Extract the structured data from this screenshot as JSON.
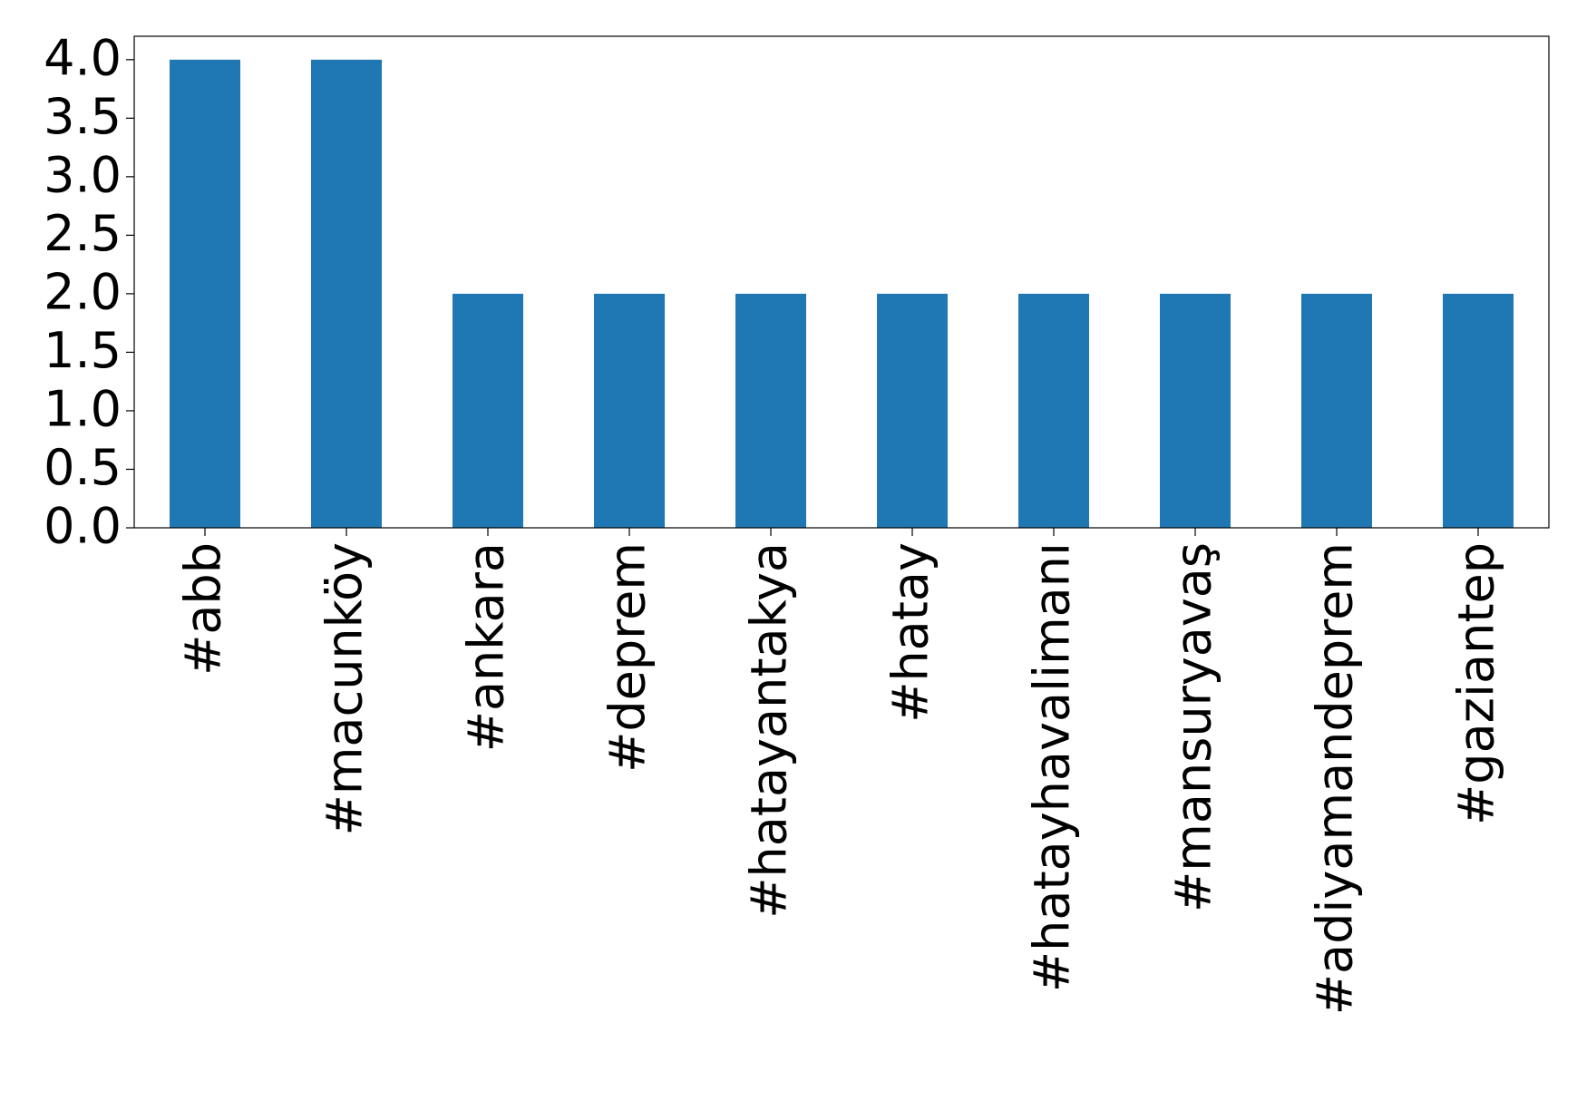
{
  "chart_data": {
    "type": "bar",
    "categories": [
      "#abb",
      "#macunköy",
      "#ankara",
      "#deprem",
      "#hatayantakya",
      "#hatay",
      "#hatayhavalimanı",
      "#mansuryavaş",
      "#adiyamandeprem",
      "#gaziantep"
    ],
    "values": [
      4,
      4,
      2,
      2,
      2,
      2,
      2,
      2,
      2,
      2
    ],
    "color": "#1f77b4",
    "ylim": [
      0,
      4.2
    ],
    "yticks": [
      {
        "value": 0,
        "label": "0.0"
      },
      0.5,
      {
        "value": 1,
        "label": "1.0"
      },
      1.5,
      {
        "value": 2,
        "label": "2.0"
      },
      2.5,
      {
        "value": 3,
        "label": "3.0"
      },
      3.5,
      {
        "value": 4,
        "label": "4.0"
      }
    ],
    "grid": false
  }
}
